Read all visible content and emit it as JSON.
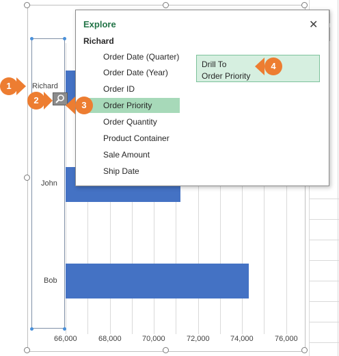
{
  "chart": {
    "axis_values": [
      "66,000",
      "68,000",
      "70,000",
      "72,000",
      "74,000",
      "76,000"
    ],
    "categories": [
      "Richard",
      "John",
      "Bob"
    ]
  },
  "chart_data": {
    "type": "bar",
    "orientation": "horizontal",
    "categories": [
      "Richard",
      "John",
      "Bob"
    ],
    "values": [
      null,
      71200,
      74300
    ],
    "xlim": [
      66000,
      77000
    ],
    "xticks": [
      66000,
      68000,
      70000,
      72000,
      74000,
      76000
    ],
    "xtick_labels": [
      "66,000",
      "68,000",
      "70,000",
      "72,000",
      "74,000",
      "76,000"
    ],
    "bar_color": "#4472c4",
    "grid": true
  },
  "explore": {
    "title": "Explore",
    "close": "✕",
    "subject": "Richard",
    "fields": [
      "Order Date (Quarter)",
      "Order Date (Year)",
      "Order ID",
      "Order Priority",
      "Order Quantity",
      "Product Container",
      "Sale Amount",
      "Ship Date"
    ],
    "selected_field": "Order Priority",
    "drill_line1": "Drill To",
    "drill_line2": "Order Priority"
  },
  "callouts": [
    "1",
    "2",
    "3",
    "4"
  ],
  "colors": {
    "accent": "#217346",
    "bar": "#4472c4",
    "callout": "#ed7d31",
    "selected": "#a7d9b9"
  }
}
